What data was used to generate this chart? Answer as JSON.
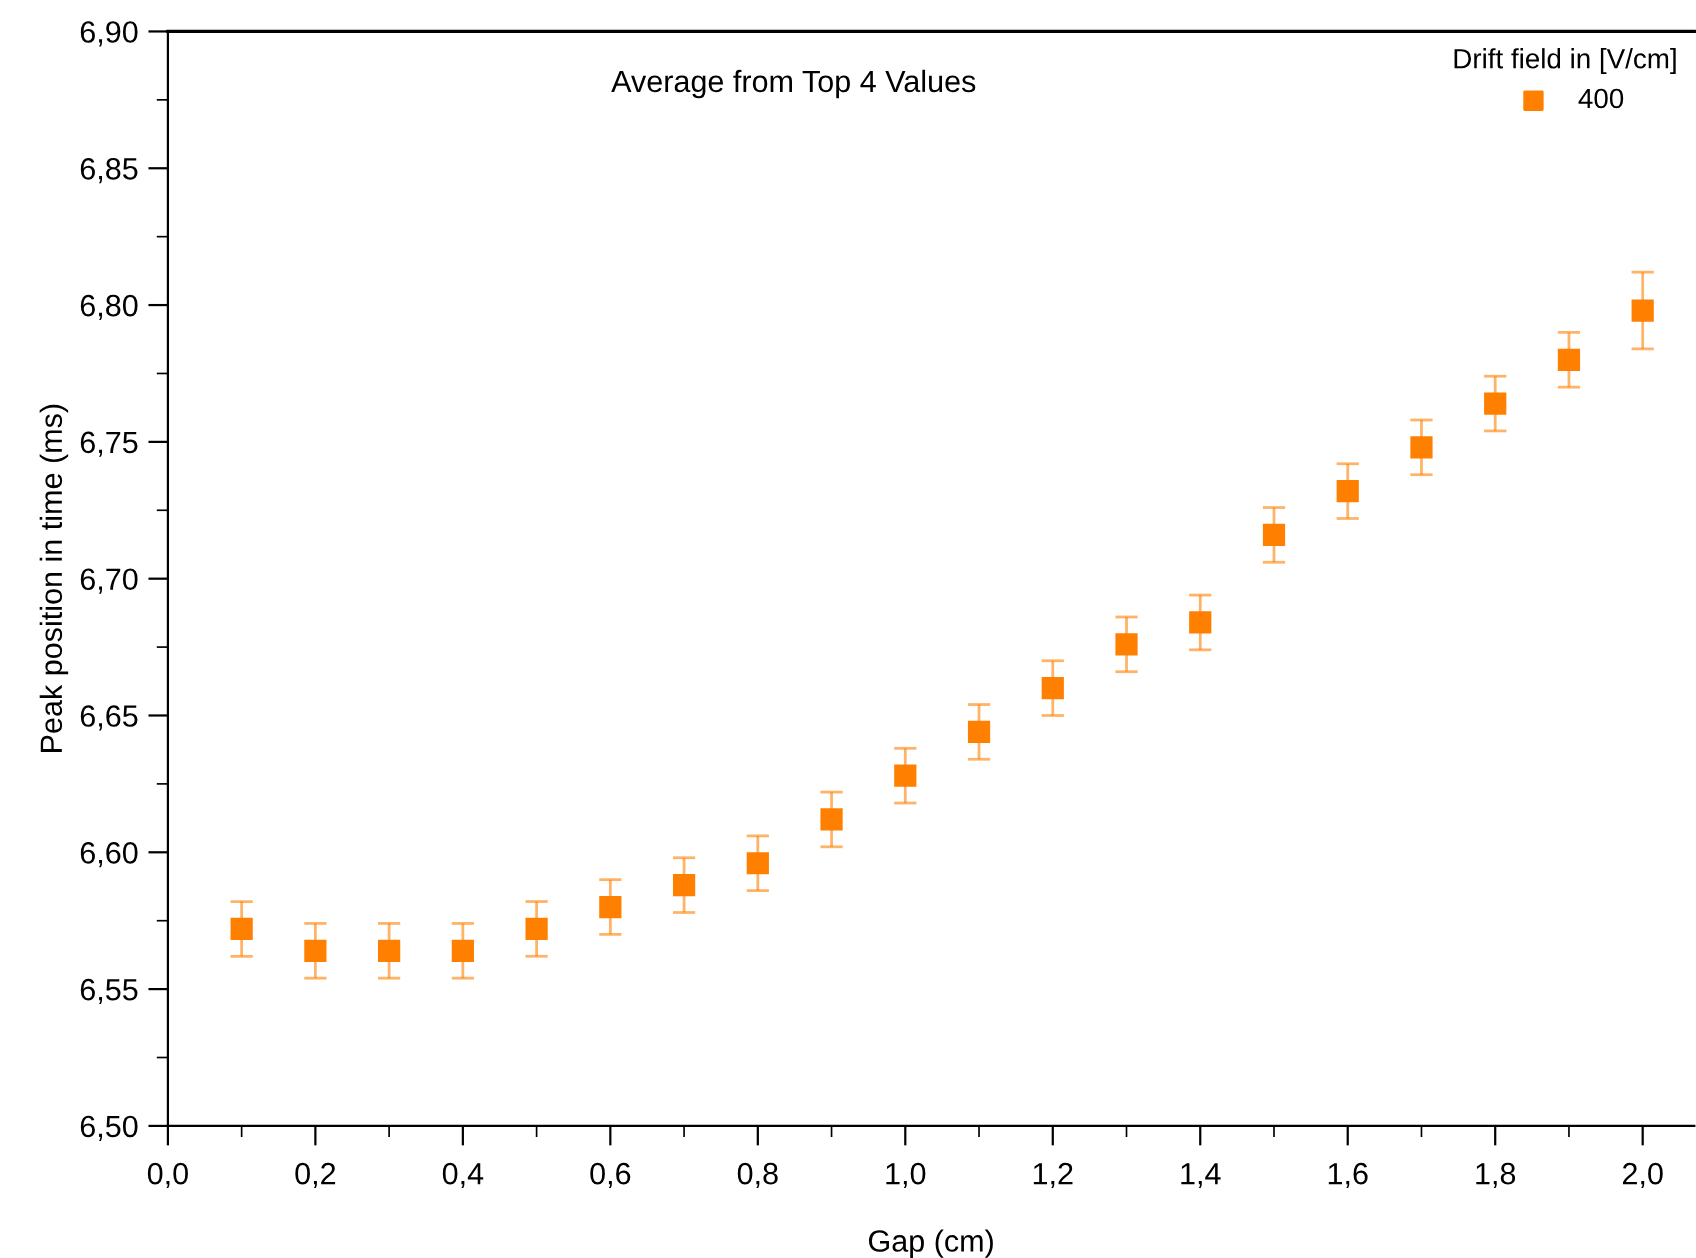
{
  "chart_data": {
    "type": "scatter",
    "xlabel": "Gap (cm)",
    "ylabel": "Peak position in time (ms)",
    "legend_title": "Drift field in [V/cm]",
    "annotations": [
      "Average from Top 4 Values"
    ],
    "x": [
      0.1,
      0.2,
      0.3,
      0.4,
      0.5,
      0.6,
      0.7,
      0.8,
      0.9,
      1.0,
      1.1,
      1.2,
      1.3,
      1.4,
      1.5,
      1.6,
      1.7,
      1.8,
      1.9,
      2.0
    ],
    "series": [
      {
        "name": "400",
        "color": "#ff8000",
        "values": [
          6.572,
          6.564,
          6.564,
          6.564,
          6.572,
          6.58,
          6.588,
          6.596,
          6.612,
          6.628,
          6.644,
          6.66,
          6.676,
          6.684,
          6.716,
          6.732,
          6.748,
          6.764,
          6.78,
          6.798
        ],
        "errors": [
          0.01,
          0.01,
          0.01,
          0.01,
          0.01,
          0.01,
          0.01,
          0.01,
          0.01,
          0.01,
          0.01,
          0.01,
          0.01,
          0.01,
          0.01,
          0.01,
          0.01,
          0.01,
          0.01,
          0.014
        ]
      }
    ],
    "xlim": [
      0,
      2.07
    ],
    "ylim": [
      6.5,
      6.9
    ],
    "xticks": [
      {
        "value": 0,
        "label": "0,0"
      },
      {
        "value": 0.2,
        "label": "0,2"
      },
      {
        "value": 0.4,
        "label": "0,4"
      },
      {
        "value": 0.6,
        "label": "0,6"
      },
      {
        "value": 0.8,
        "label": "0,8"
      },
      {
        "value": 1.0,
        "label": "1,0"
      },
      {
        "value": 1.2,
        "label": "1,2"
      },
      {
        "value": 1.4,
        "label": "1,4"
      },
      {
        "value": 1.6,
        "label": "1,6"
      },
      {
        "value": 1.8,
        "label": "1,8"
      },
      {
        "value": 2.0,
        "label": "2,0"
      }
    ],
    "yticks": [
      {
        "value": 6.5,
        "label": "6,50"
      },
      {
        "value": 6.55,
        "label": "6,55"
      },
      {
        "value": 6.6,
        "label": "6,60"
      },
      {
        "value": 6.65,
        "label": "6,65"
      },
      {
        "value": 6.7,
        "label": "6,70"
      },
      {
        "value": 6.75,
        "label": "6,75"
      },
      {
        "value": 6.8,
        "label": "6,80"
      },
      {
        "value": 6.85,
        "label": "6,85"
      },
      {
        "value": 6.9,
        "label": "6,90"
      }
    ],
    "grid": false,
    "legend": "top right",
    "marker": "square"
  }
}
